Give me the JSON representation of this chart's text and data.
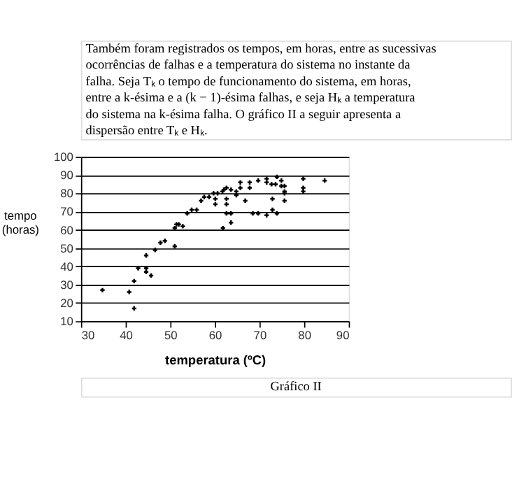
{
  "chart_data": {
    "type": "scatter",
    "annotations": [
      "Também foram registrados os tempos, em horas, entre as sucessivas ocorrências de falhas e a temperatura do sistema no instante da falha. Seja Tₖ o tempo de funcionamento do sistema, em horas, entre a k-ésima e a (k − 1)-ésima falhas, e seja Hₖ a temperatura do sistema na k-ésima falha. O gráfico II a seguir apresenta a dispersão entre Tₖ e Hₖ.",
      "Gráfico II"
    ],
    "xlabel": "temperatura (ºC)",
    "ylabel": "tempo (horas)",
    "x": [
      34.8,
      40.8,
      41.9,
      41.9,
      42.8,
      44.6,
      44.6,
      44.6,
      45.7,
      46.6,
      47.8,
      48.8,
      51,
      51,
      51.4,
      51.9,
      52.8,
      53.8,
      54.8,
      55.9,
      56.9,
      57.6,
      58.7,
      59.7,
      60.1,
      60.1,
      60.6,
      61.7,
      61.8,
      62,
      62.6,
      62.6,
      62.6,
      62.6,
      63.6,
      63.6,
      63.6,
      64.8,
      64.8,
      65.7,
      65.7,
      66.8,
      67.8,
      67.8,
      68.5,
      69.7,
      69.7,
      71.6,
      71.6,
      71.6,
      72.7,
      72.9,
      72.9,
      73.6,
      73.9,
      73.9,
      74.9,
      74.9,
      75.6,
      75.6,
      75.6,
      75.6,
      79.8,
      79.8,
      79.8,
      84.6
    ],
    "series": [
      {
        "color": "#000000",
        "values": [
          27,
          26,
          17,
          32,
          39,
          46,
          39,
          37,
          35,
          49,
          53,
          54,
          51,
          61,
          63,
          63,
          62,
          69,
          71,
          71,
          76,
          78,
          78,
          80,
          77,
          74,
          80,
          81,
          61,
          82,
          83,
          77,
          74,
          69,
          82,
          69,
          64,
          81,
          79,
          83,
          86,
          76,
          86,
          83,
          69,
          87,
          69,
          88,
          86,
          68,
          85,
          77,
          71,
          85,
          89,
          69,
          87,
          84,
          84,
          81,
          80,
          76,
          88,
          83,
          81,
          87
        ]
      }
    ],
    "xlim": [
      30,
      90
    ],
    "xticks": [
      30,
      40,
      50,
      60,
      70,
      80,
      90
    ],
    "ylim": [
      10,
      100
    ],
    "yticks": [
      10,
      20,
      30,
      40,
      50,
      60,
      70,
      80,
      90,
      100
    ],
    "grid": "y",
    "marker": "cross",
    "legend": false
  }
}
